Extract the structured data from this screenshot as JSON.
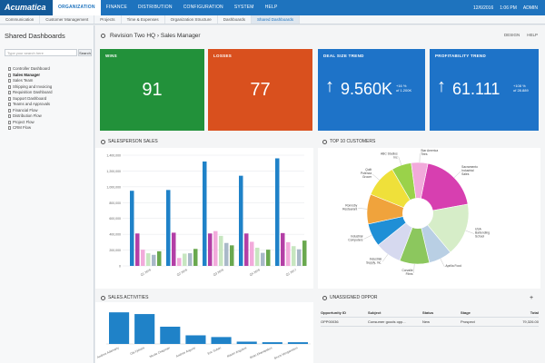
{
  "topbar": {
    "logo": "Acumatica",
    "menu": [
      "ORGANIZATION",
      "FINANCE",
      "DISTRIBUTION",
      "CONFIGURATION",
      "SYSTEM",
      "HELP"
    ],
    "active_menu": 0,
    "date": "12/6/2016",
    "time": "1:06 PM",
    "user": "ADMIN"
  },
  "subbar": {
    "items": [
      "Communication",
      "Customer Management",
      "Projects",
      "Time & Expenses",
      "Organization Structure",
      "Dashboards",
      "Shared Dashboards"
    ],
    "active": 6
  },
  "sidebar": {
    "title": "Shared Dashboards",
    "search_placeholder": "Type your search here",
    "search_button": "Search",
    "items": [
      "Controller Dashboard",
      "Sales Manager",
      "Sales Team",
      "Shipping and Invoicing",
      "Requisition Dashboard",
      "Support Dashboard",
      "Teams and Approvals",
      "Financial Flow",
      "Distribution Flow",
      "Project Flow",
      "CRM Flow"
    ],
    "active": 1
  },
  "dashboard": {
    "title": "Revision Two HQ  ›  Sales Manager",
    "actions": [
      "DESIGN",
      "HELP"
    ]
  },
  "kpis": [
    {
      "title": "WINS",
      "value": "91",
      "color": "#22913a"
    },
    {
      "title": "LOSSES",
      "value": "77",
      "color": "#d9501e"
    },
    {
      "title": "DEAL SIZE TREND",
      "value": "9.560K",
      "sub1": "+16 %",
      "sub2": "of 1.200K",
      "color": "#1e73c8",
      "arrow": "↑"
    },
    {
      "title": "PROFITABILITY TREND",
      "value": "61.111",
      "sub1": "+108 %",
      "sub2": "of 28.889",
      "color": "#1e73c8",
      "arrow": "↑"
    }
  ],
  "panels": {
    "salesperson": "SALESPERSON SALES",
    "top_customers": "TOP 10 CUSTOMERS",
    "activities": "SALES ACTIVITIES",
    "unassigned": "UNASSIGNED OPPOR"
  },
  "chart_data": [
    {
      "type": "bar",
      "title": "SALESPERSON SALES",
      "categories": [
        "Q1 2016",
        "Q2 2016",
        "Q3 2016",
        "Q4 2016",
        "Q1 2017"
      ],
      "ylim": [
        0,
        1400000
      ],
      "yticks": [
        "0",
        "200,000",
        "400,000",
        "600,000",
        "800,000",
        "1,000,000",
        "1,200,000",
        "1,400,000"
      ],
      "series": [
        {
          "color": "#1f82c8",
          "values": [
            950000,
            960000,
            1320000,
            1140000,
            1360000
          ]
        },
        {
          "color": "#b33fa6",
          "values": [
            410000,
            420000,
            410000,
            410000,
            415000
          ]
        },
        {
          "color": "#f2aadb",
          "values": [
            205000,
            100000,
            440000,
            305000,
            300000
          ]
        },
        {
          "color": "#c7e6c0",
          "values": [
            160000,
            155000,
            380000,
            230000,
            250000
          ]
        },
        {
          "color": "#a9b9c8",
          "values": [
            140000,
            160000,
            290000,
            165000,
            210000
          ]
        },
        {
          "color": "#6aa84f",
          "values": [
            185000,
            215000,
            260000,
            205000,
            320000
          ]
        }
      ],
      "grid": true,
      "legend": "none"
    },
    {
      "type": "pie",
      "title": "TOP 10 CUSTOMERS",
      "slices": [
        {
          "label": "Sacramento Industrial Sales",
          "value": 18,
          "color": "#d73fb0"
        },
        {
          "label": "USA Bartending School",
          "value": 16,
          "color": "#d6edc8"
        },
        {
          "label": "Aprilia Food",
          "value": 7,
          "color": "#b9cfe4"
        },
        {
          "label": "Corvalle Films",
          "value": 9,
          "color": "#8cc75e"
        },
        {
          "label": "Industrial Supply, Inc.",
          "value": 8,
          "color": "#d6d9ef"
        },
        {
          "label": "Industrial Computers",
          "value": 7,
          "color": "#1f8fd6"
        },
        {
          "label": "Ronnsby Restaurant",
          "value": 9,
          "color": "#f0a33c"
        },
        {
          "label": "Quilt Potenza Grocer",
          "value": 10,
          "color": "#efe03a"
        },
        {
          "label": "ABC Studios Inc",
          "value": 6,
          "color": "#9ad24a"
        },
        {
          "label": "Star America Tires",
          "value": 5,
          "color": "#f2aadb"
        }
      ]
    },
    {
      "type": "bar",
      "title": "SALES ACTIVITIES",
      "categories": [
        "Andrew Adamarty",
        "Ola Fjelstra",
        "Nicole Chapman",
        "Andrew Anguno",
        "Eric Sultan",
        "Maxim Anguleni",
        "Brian Ekanayakos",
        "Bruce Morganstern"
      ],
      "values": [
        55,
        52,
        30,
        15,
        12,
        4,
        3,
        3
      ],
      "ylim": [
        0,
        60
      ],
      "color": "#1f82c8"
    }
  ],
  "table": {
    "headers": [
      "Opportunity ID",
      "Subject",
      "Status",
      "Stage",
      "Total"
    ],
    "rows": [
      [
        "OPP00036",
        "Consumer goods opp...",
        "New",
        "Prospect",
        "79,326.00"
      ]
    ]
  }
}
